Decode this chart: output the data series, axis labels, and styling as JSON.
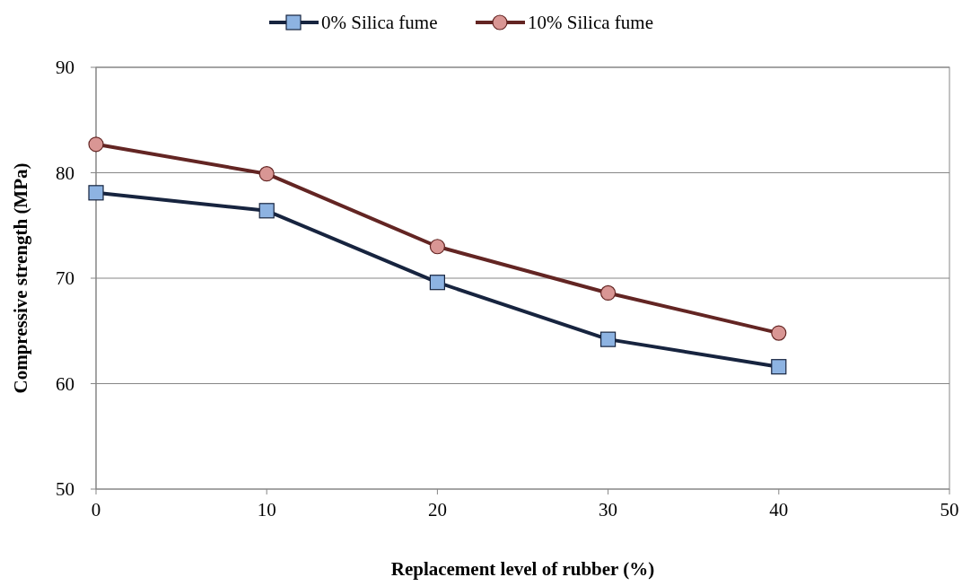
{
  "chart_data": {
    "type": "line",
    "xlabel": "Replacement level of rubber (%)",
    "ylabel": "Compressive strength (MPa)",
    "x": [
      0,
      10,
      20,
      30,
      40
    ],
    "series": [
      {
        "name": "0% Silica fume",
        "color": "#17243f",
        "marker": "square",
        "values": [
          78.1,
          76.4,
          69.6,
          64.2,
          61.6
        ]
      },
      {
        "name": "10% Silica fume",
        "color": "#632523",
        "marker": "circle",
        "values": [
          82.7,
          79.9,
          73.0,
          68.6,
          64.8
        ]
      }
    ],
    "xlim": [
      0,
      50
    ],
    "xticks": [
      0,
      10,
      20,
      30,
      40,
      50
    ],
    "ylim": [
      50,
      90
    ],
    "yticks": [
      50,
      60,
      70,
      80,
      90
    ],
    "grid": "y",
    "legend": "top"
  }
}
